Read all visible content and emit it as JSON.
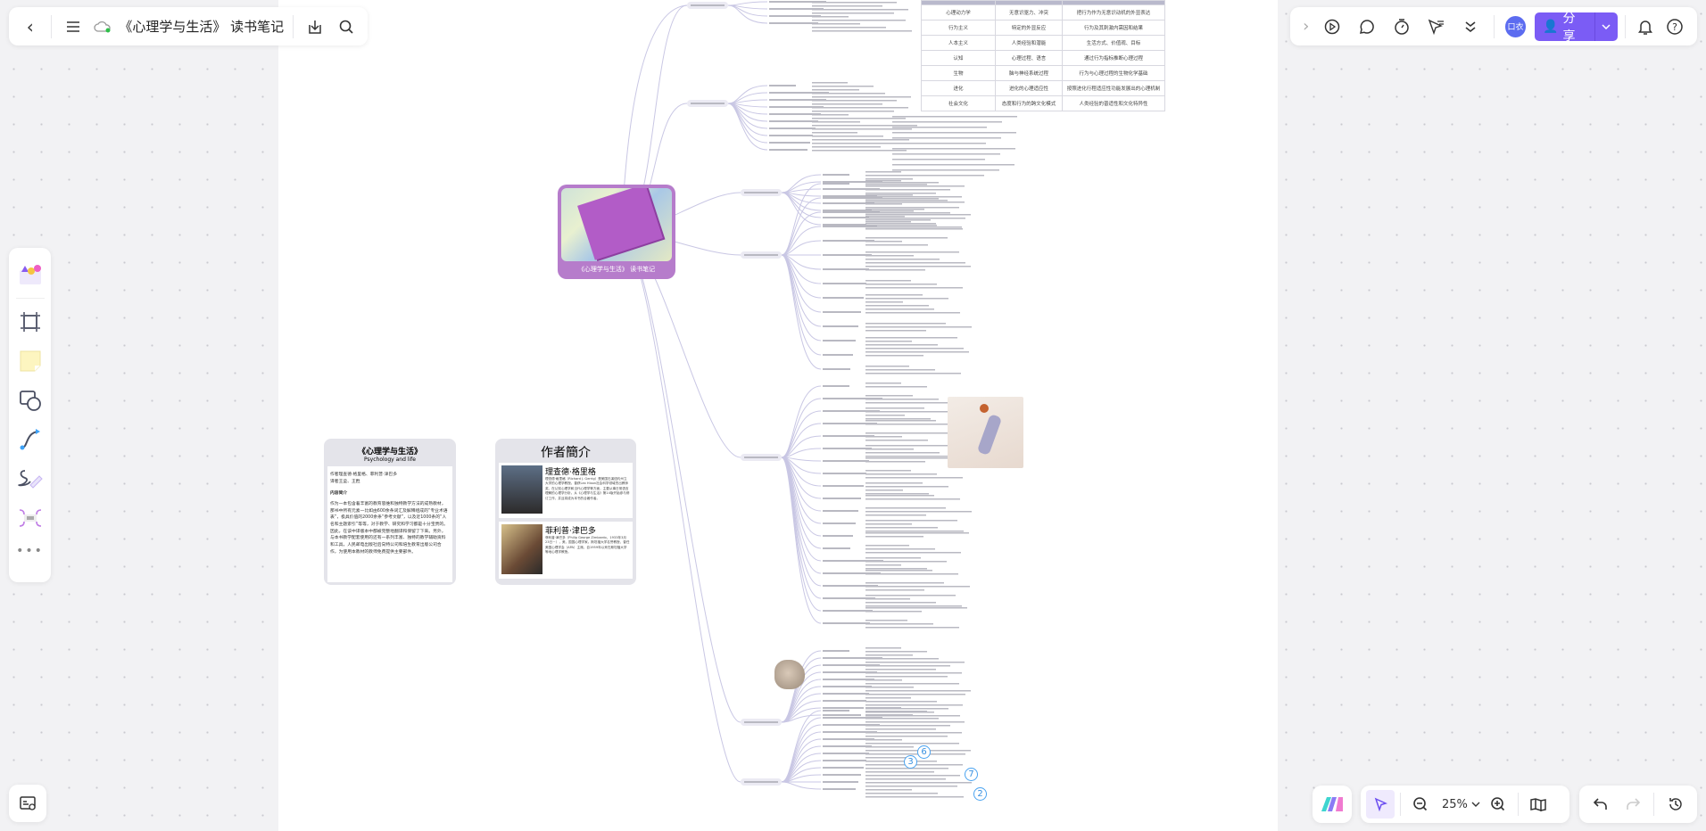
{
  "topbar": {
    "title": "《心理学与生活》 读书笔记",
    "sync_status_color": "#2fbf4a"
  },
  "right_toolbar": {
    "avatar_text": "口衣",
    "share_label": "分享",
    "accent": "#7b5cf5"
  },
  "zoom": {
    "level": "25%"
  },
  "mindmap": {
    "central_caption": "《心理学与生活》 读书笔记",
    "circled_numbers": [
      "6",
      "3",
      "7",
      "2"
    ]
  },
  "table": {
    "rows": [
      [
        "心理动力学",
        "无意识驱力、冲突",
        "把行为作为无意识动机的外显表达"
      ],
      [
        "行为主义",
        "特定的外显反应",
        "行为及其刺激内需因和结果"
      ],
      [
        "人本主义",
        "人类经验和潜能",
        "生活方式、价值观、目标"
      ],
      [
        "认知",
        "心理过程、语言",
        "通过行为指标推断心理过程"
      ],
      [
        "生物",
        "脑与神经系统过程",
        "行为与心理过程的生物化学基础"
      ],
      [
        "进化",
        "进化的心理适应性",
        "按照进化行程适应性功能发展出的心理机制"
      ],
      [
        "社会文化",
        "态度和行为的跨文化模式",
        "人类经验的普适性和文化特异性"
      ]
    ]
  },
  "book_card": {
    "title": "《心理学与生活》",
    "subtitle": "Psychology and life",
    "authors": "作者理查德·格里格、菲利普·津巴多",
    "translators": "译者王垒、王甦",
    "intro_heading": "内容简介",
    "intro": "作为一本包含着丰富的教育思维和独特教学方法的成熟教材，那书中所有元素一比如由600余条词汇及解释组成的“专业术语表”，极具价值的2000余条“参考文献”，以及近1000条的“人名和主题索引”等等，对于教学、研究和学习都是十分宝贵的。因此，在该中译版本中都被完整地翻译和保留了下来。另外，与本书教学配套使用的还有一系列丰富、独特的教学辅助资料和工具，人民邮电出版社后向特公司和培生教育出版公司合作，为使用本教材的教师免费提供主要部件。"
  },
  "author_card": {
    "title": "作者簡介",
    "authors": [
      {
        "name": "理查德·格里格",
        "bio": "理查德·格里格（Richard J. Gerrig）是美国石溪纽约州立大学的心理学教授。曾获Lex Hixon社会科学领域杰出教师奖。在认知心理学和当代心理学等方面，主要从事日常语言理解的心理学分析。从《心理学与生活》第14版开始参与修订工作，并且将成为本书的合著作者。"
      },
      {
        "name": "菲利普·津巴多",
        "bio": "菲利普·津巴多（Philip George Zimbardo，1933年3月23日－），美，国国心理学家。斯坦福大学名誉教授，曾任美国心理学会（APA）主席，自1959年以来在斯坦福大学等地心理学教授。"
      }
    ]
  }
}
